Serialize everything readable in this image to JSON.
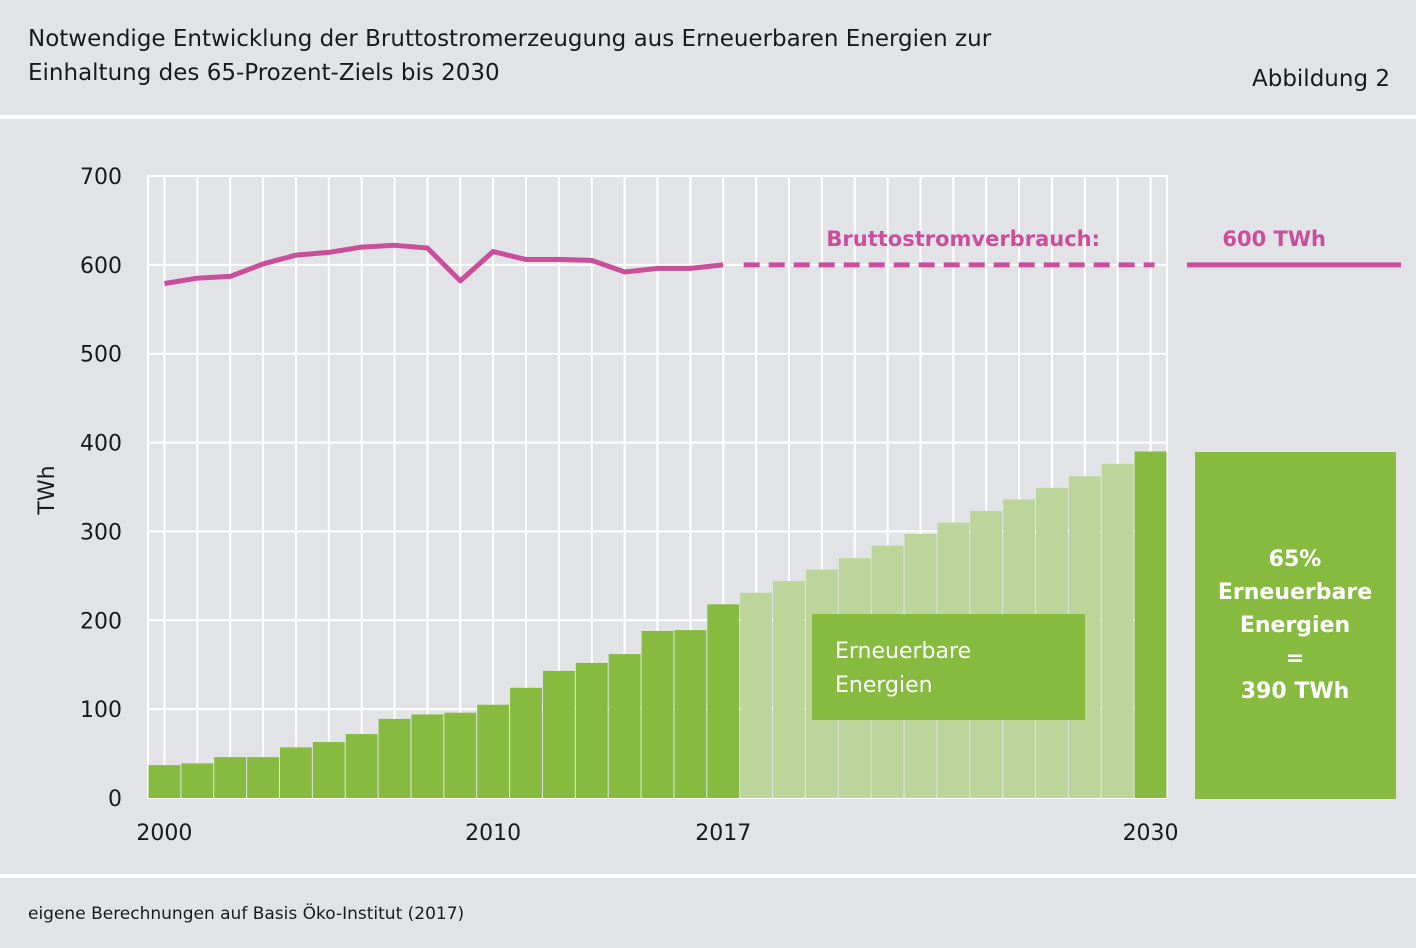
{
  "header": {
    "title_line1": "Notwendige Entwicklung der Bruttostromerzeugung aus Erneuerbaren Energien zur",
    "title_line2": "Einhaltung des 65-Prozent-Ziels bis 2030",
    "figure_label": "Abbildung 2"
  },
  "footer": {
    "source": "eigene Berechnungen auf Basis Öko-Institut (2017)"
  },
  "colors": {
    "background": "#e2e3e7",
    "renewables_actual": "#86bb3f",
    "renewables_projected": "#bcd59b",
    "consumption_line": "#c94f9b",
    "grid": "#ffffff"
  },
  "chart_data": {
    "type": "bar",
    "ylabel": "TWh",
    "ylim": [
      0,
      700
    ],
    "yticks": [
      0,
      100,
      200,
      300,
      400,
      500,
      600,
      700
    ],
    "xtick_labels": [
      "2000",
      "2010",
      "2017",
      "2030"
    ],
    "grid": true,
    "series": [
      {
        "kind": "bar-step",
        "color": "#86bb3f",
        "x": [
          2000,
          2001,
          2002,
          2003,
          2004,
          2005,
          2006,
          2007,
          2008,
          2009,
          2010,
          2011,
          2012,
          2013,
          2014,
          2015,
          2016,
          2017
        ],
        "values": [
          37,
          39,
          46,
          46,
          57,
          63,
          72,
          89,
          94,
          96,
          105,
          124,
          143,
          152,
          162,
          188,
          189,
          218
        ]
      },
      {
        "kind": "bar-step-projected",
        "color": "#bcd59b",
        "x": [
          2018,
          2019,
          2020,
          2021,
          2022,
          2023,
          2024,
          2025,
          2026,
          2027,
          2028,
          2029
        ],
        "values": [
          231,
          244,
          257,
          270,
          284,
          297,
          310,
          323,
          336,
          349,
          362,
          376
        ]
      },
      {
        "kind": "bar-target",
        "color": "#86bb3f",
        "x": [
          2030
        ],
        "values": [
          390
        ]
      },
      {
        "kind": "line",
        "color": "#c94f9b",
        "x": [
          2000,
          2001,
          2002,
          2003,
          2004,
          2005,
          2006,
          2007,
          2008,
          2009,
          2010,
          2011,
          2012,
          2013,
          2014,
          2015,
          2016,
          2017
        ],
        "values": [
          579,
          585,
          587,
          601,
          611,
          614,
          620,
          622,
          619,
          582,
          615,
          606,
          606,
          605,
          592,
          596,
          596,
          600
        ]
      },
      {
        "kind": "line-dashed",
        "color": "#c94f9b",
        "x": [
          2018,
          2030
        ],
        "values": [
          600,
          600
        ]
      }
    ],
    "annotations": {
      "consumption_label": "Bruttostromverbrauch:",
      "consumption_value": "600 TWh",
      "renewables_box_line1": "Erneuerbare",
      "renewables_box_line2": "Energien",
      "target_line1": "65%",
      "target_line2": "Erneuerbare",
      "target_line3": "Energien",
      "target_line4": "=",
      "target_line5": "390 TWh"
    }
  }
}
